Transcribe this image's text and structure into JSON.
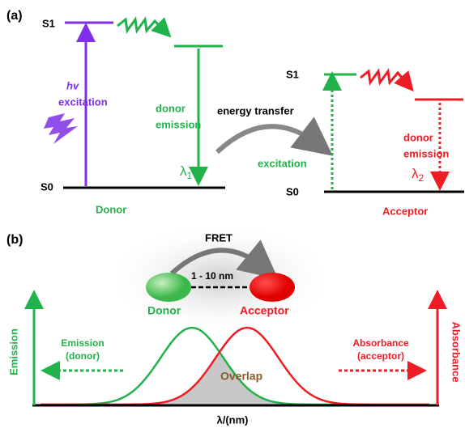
{
  "panel_a": {
    "label": "(a)",
    "donor": {
      "s1": "S1",
      "s0": "S0",
      "hv": "hv",
      "excitation": "excitation",
      "emission": [
        "donor",
        "emission"
      ],
      "lambda": "λ",
      "lambda_sub": "1",
      "name": "Donor"
    },
    "transfer": "energy transfer",
    "acceptor": {
      "s1": "S1",
      "s0": "S0",
      "excitation": "excitation",
      "emission": [
        "donor",
        "emission"
      ],
      "lambda": "λ",
      "lambda_sub": "2",
      "name": "Acceptor"
    }
  },
  "panel_b": {
    "label": "(b)",
    "fret": "FRET",
    "distance": "1 - 10 nm",
    "donor": "Donor",
    "acceptor": "Acceptor",
    "emission_note": [
      "Emission",
      "(donor)"
    ],
    "absorbance_note": [
      "Absorbance",
      "(acceptor)"
    ],
    "y_left": "Emission",
    "y_right": "Absorbance",
    "overlap": "Overlap",
    "x_label": "λ/(nm)"
  }
}
